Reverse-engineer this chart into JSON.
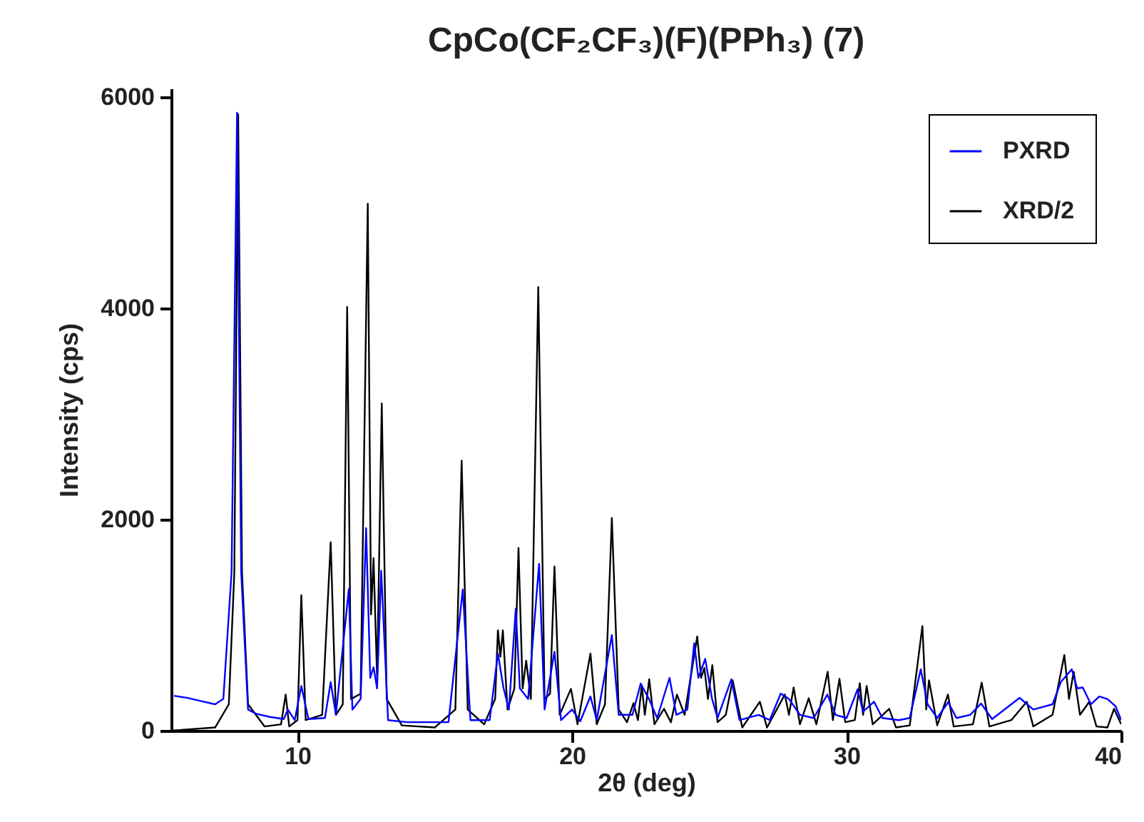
{
  "chart_data": {
    "type": "line",
    "title": "CpCo(CF₂CF₃)(F)(PPh₃) (7)",
    "xlabel": "2θ (deg)",
    "ylabel": "Intensity (cps)",
    "xlim": [
      5.4,
      40
    ],
    "xticks": [
      10,
      20,
      30,
      40
    ],
    "ylim": [
      0,
      6080
    ],
    "yticks": [
      0,
      2000,
      4000,
      6000
    ],
    "grid": false,
    "legend": "top right",
    "series": [
      {
        "name": "PXRD",
        "color": "#0000ff",
        "x": [
          5.5,
          6.0,
          6.5,
          7.0,
          7.3,
          7.6,
          7.8,
          7.95,
          8.2,
          8.5,
          9.0,
          9.5,
          9.65,
          9.9,
          10.14,
          10.4,
          11.0,
          11.21,
          11.4,
          11.87,
          12.0,
          12.3,
          12.5,
          12.65,
          12.77,
          12.9,
          13.05,
          13.3,
          14.0,
          15.5,
          16.02,
          16.3,
          17.0,
          17.3,
          17.5,
          17.7,
          17.95,
          18.1,
          18.4,
          18.8,
          19.0,
          19.36,
          19.6,
          20.0,
          20.3,
          20.67,
          20.9,
          21.45,
          21.7,
          22.2,
          22.5,
          22.8,
          23.1,
          23.55,
          23.8,
          24.2,
          24.45,
          24.6,
          24.85,
          25.1,
          25.3,
          25.8,
          26.1,
          26.8,
          27.2,
          27.6,
          27.9,
          28.3,
          28.8,
          29.3,
          29.6,
          30.0,
          30.4,
          30.6,
          31.0,
          31.3,
          31.9,
          32.3,
          32.7,
          32.95,
          33.3,
          33.7,
          34.0,
          34.5,
          34.9,
          35.3,
          36.3,
          36.8,
          37.5,
          37.8,
          38.2,
          38.4,
          38.6,
          38.9,
          39.2,
          39.5,
          39.8,
          40.0
        ],
        "values": [
          330,
          310,
          280,
          250,
          300,
          1500,
          5850,
          1500,
          200,
          160,
          130,
          110,
          200,
          100,
          423,
          110,
          120,
          459,
          150,
          1342,
          200,
          300,
          1918,
          500,
          600,
          400,
          1513,
          100,
          80,
          80,
          1337,
          100,
          100,
          730,
          409,
          200,
          1153,
          400,
          300,
          1580,
          200,
          747,
          100,
          200,
          90,
          324,
          100,
          905,
          150,
          150,
          446,
          300,
          120,
          500,
          150,
          200,
          828,
          500,
          680,
          300,
          120,
          486,
          100,
          150,
          100,
          351,
          300,
          150,
          120,
          342,
          150,
          120,
          392,
          180,
          274,
          120,
          100,
          120,
          581,
          250,
          120,
          270,
          120,
          150,
          257,
          110,
          311,
          200,
          250,
          459,
          581,
          400,
          409,
          250,
          324,
          300,
          230,
          100
        ]
      },
      {
        "name": "XRD/2",
        "color": "#000000",
        "x": [
          5.4,
          7.0,
          7.5,
          7.7,
          7.84,
          7.98,
          8.2,
          8.8,
          9.4,
          9.57,
          9.7,
          10.0,
          10.14,
          10.3,
          10.9,
          11.21,
          11.4,
          11.65,
          11.81,
          11.95,
          12.3,
          12.56,
          12.68,
          12.77,
          12.9,
          13.07,
          13.25,
          13.8,
          15.0,
          15.75,
          15.98,
          16.2,
          16.8,
          17.2,
          17.3,
          17.39,
          17.48,
          17.65,
          17.9,
          18.05,
          18.2,
          18.33,
          18.5,
          18.77,
          19.0,
          19.2,
          19.36,
          19.55,
          19.96,
          20.2,
          20.67,
          20.9,
          21.2,
          21.45,
          21.7,
          22.0,
          22.24,
          22.4,
          22.54,
          22.65,
          22.81,
          23.0,
          23.35,
          23.6,
          23.82,
          24.1,
          24.56,
          24.7,
          24.82,
          24.95,
          25.11,
          25.3,
          25.6,
          25.85,
          26.2,
          26.84,
          27.1,
          27.75,
          27.9,
          28.07,
          28.3,
          28.62,
          28.9,
          29.31,
          29.5,
          29.74,
          29.95,
          30.3,
          30.48,
          30.6,
          30.73,
          30.95,
          31.55,
          31.8,
          32.3,
          32.76,
          32.9,
          33.0,
          33.3,
          33.69,
          33.9,
          34.6,
          34.92,
          35.2,
          36.0,
          36.56,
          36.8,
          37.5,
          37.93,
          38.1,
          38.27,
          38.5,
          38.84,
          39.1,
          39.5,
          39.74,
          40.0
        ],
        "values": [
          0,
          30,
          250,
          1500,
          5836,
          1500,
          250,
          40,
          60,
          342,
          40,
          100,
          1283,
          100,
          150,
          1783,
          150,
          250,
          4012,
          300,
          350,
          4990,
          1100,
          1634,
          500,
          3098,
          300,
          50,
          30,
          200,
          2557,
          200,
          60,
          300,
          950,
          700,
          950,
          200,
          400,
          1729,
          400,
          662,
          300,
          4201,
          300,
          350,
          1554,
          150,
          396,
          60,
          730,
          60,
          250,
          2013,
          200,
          80,
          261,
          100,
          423,
          150,
          486,
          60,
          207,
          80,
          342,
          150,
          892,
          500,
          594,
          300,
          621,
          80,
          150,
          477,
          30,
          274,
          30,
          342,
          150,
          409,
          60,
          307,
          60,
          558,
          100,
          491,
          80,
          100,
          450,
          150,
          423,
          60,
          207,
          30,
          50,
          990,
          200,
          477,
          50,
          342,
          40,
          60,
          455,
          40,
          100,
          274,
          40,
          150,
          716,
          300,
          558,
          150,
          274,
          40,
          30,
          207,
          60
        ]
      }
    ]
  }
}
